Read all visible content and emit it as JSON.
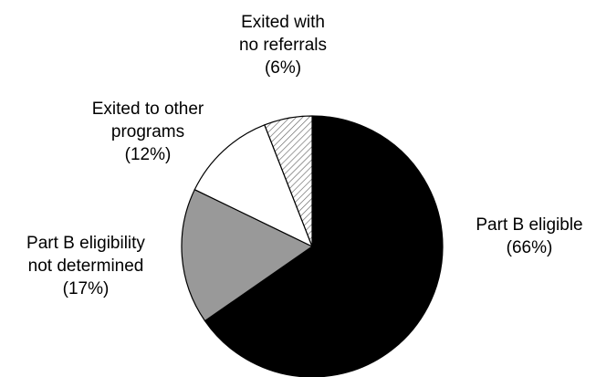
{
  "chart_data": {
    "type": "pie",
    "slices": [
      {
        "label_lines": [
          "Part B eligible",
          "(66%)"
        ],
        "value": 66,
        "color": "#000000",
        "fill": "solid"
      },
      {
        "label_lines": [
          "Part B eligibility",
          "not determined",
          "(17%)"
        ],
        "value": 17,
        "color": "#999999",
        "fill": "solid"
      },
      {
        "label_lines": [
          "Exited to other",
          "programs",
          "(12%)"
        ],
        "value": 12,
        "color": "#ffffff",
        "fill": "solid"
      },
      {
        "label_lines": [
          "Exited with",
          "no referrals",
          "(6%)"
        ],
        "value": 6,
        "color": "#ffffff",
        "fill": "diagonal-hatch"
      }
    ],
    "start": "12 o'clock",
    "direction": "clockwise",
    "legend": "none (labels placed beside slices)"
  }
}
